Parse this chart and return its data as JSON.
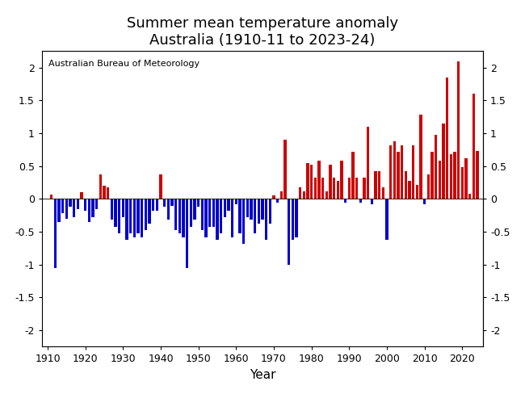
{
  "title_line1": "Summer mean temperature anomaly",
  "title_line2": "Australia (1910-11 to 2023-24)",
  "xlabel": "Year",
  "annotation": "Australian Bureau of Meteorology",
  "xlim": [
    1908.5,
    2025.5
  ],
  "ylim": [
    -2.25,
    2.25
  ],
  "yticks": [
    -2,
    -1.5,
    -1,
    -0.5,
    0,
    0.5,
    1,
    1.5,
    2
  ],
  "xticks": [
    1910,
    1920,
    1930,
    1940,
    1950,
    1960,
    1970,
    1980,
    1990,
    2000,
    2010,
    2020
  ],
  "years": [
    1911,
    1912,
    1913,
    1914,
    1915,
    1916,
    1917,
    1918,
    1919,
    1920,
    1921,
    1922,
    1923,
    1924,
    1925,
    1926,
    1927,
    1928,
    1929,
    1930,
    1931,
    1932,
    1933,
    1934,
    1935,
    1936,
    1937,
    1938,
    1939,
    1940,
    1941,
    1942,
    1943,
    1944,
    1945,
    1946,
    1947,
    1948,
    1949,
    1950,
    1951,
    1952,
    1953,
    1954,
    1955,
    1956,
    1957,
    1958,
    1959,
    1960,
    1961,
    1962,
    1963,
    1964,
    1965,
    1966,
    1967,
    1968,
    1969,
    1970,
    1971,
    1972,
    1973,
    1974,
    1975,
    1976,
    1977,
    1978,
    1979,
    1980,
    1981,
    1982,
    1983,
    1984,
    1985,
    1986,
    1987,
    1988,
    1989,
    1990,
    1991,
    1992,
    1993,
    1994,
    1995,
    1996,
    1997,
    1998,
    1999,
    2000,
    2001,
    2002,
    2003,
    2004,
    2005,
    2006,
    2007,
    2008,
    2009,
    2010,
    2011,
    2012,
    2013,
    2014,
    2015,
    2016,
    2017,
    2018,
    2019,
    2020,
    2021,
    2022,
    2023,
    2024
  ],
  "values": [
    0.07,
    -1.05,
    -0.35,
    -0.22,
    -0.3,
    -0.12,
    -0.28,
    -0.15,
    0.1,
    -0.18,
    -0.35,
    -0.28,
    -0.15,
    0.38,
    0.2,
    0.18,
    -0.32,
    -0.42,
    -0.52,
    -0.28,
    -0.62,
    -0.52,
    -0.58,
    -0.52,
    -0.58,
    -0.48,
    -0.38,
    -0.18,
    -0.18,
    0.38,
    -0.12,
    -0.32,
    -0.1,
    -0.48,
    -0.52,
    -0.58,
    -1.05,
    -0.42,
    -0.32,
    -0.12,
    -0.48,
    -0.58,
    -0.42,
    -0.42,
    -0.62,
    -0.52,
    -0.28,
    -0.18,
    -0.58,
    -0.08,
    -0.52,
    -0.68,
    -0.28,
    -0.32,
    -0.52,
    -0.38,
    -0.32,
    -0.62,
    -0.38,
    0.05,
    -0.05,
    0.12,
    0.9,
    -1.0,
    -0.62,
    -0.58,
    0.18,
    0.12,
    0.55,
    0.52,
    0.32,
    0.58,
    0.32,
    0.12,
    0.52,
    0.32,
    0.28,
    0.58,
    -0.05,
    0.32,
    0.72,
    0.32,
    -0.05,
    0.32,
    1.1,
    -0.08,
    0.42,
    0.42,
    0.18,
    -0.62,
    0.82,
    0.88,
    0.72,
    0.82,
    0.42,
    0.28,
    0.82,
    0.22,
    1.28,
    -0.08,
    0.38,
    0.72,
    0.98,
    0.58,
    1.15,
    1.85,
    0.68,
    0.72,
    2.1,
    0.48,
    0.62,
    0.08,
    1.6,
    0.73
  ],
  "color_positive": "#CC0000",
  "color_negative": "#0000CC",
  "bar_width": 0.75,
  "title_fontsize": 13,
  "tick_fontsize": 9,
  "annotation_fontsize": 8,
  "xlabel_fontsize": 11
}
